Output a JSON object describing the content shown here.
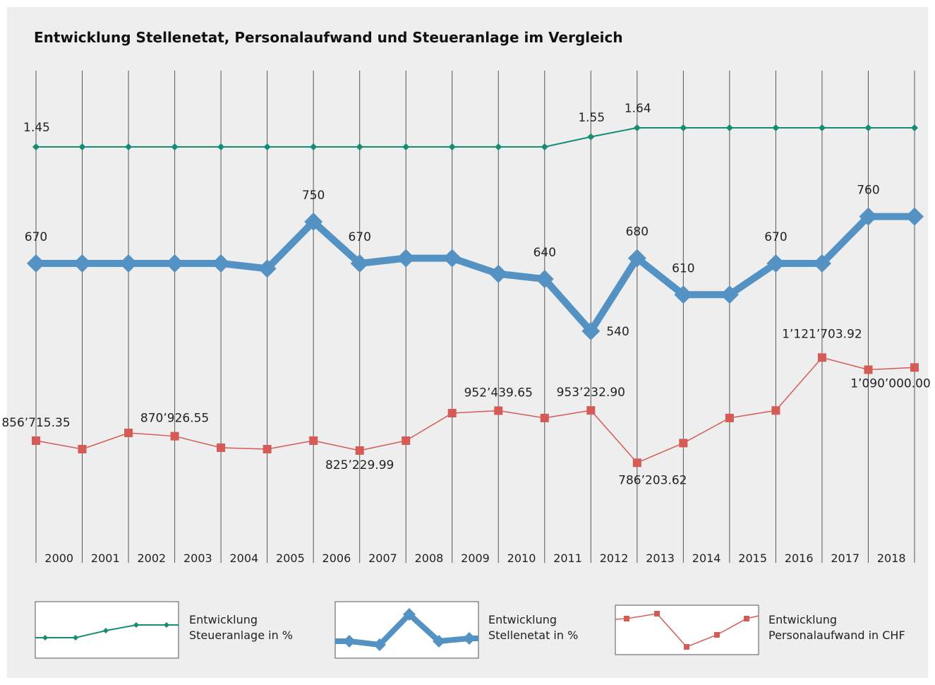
{
  "chart_data": {
    "type": "line",
    "title": "Entwicklung Stellenetat, Personalaufwand und Steueranlage im Vergleich",
    "categories": [
      "2000",
      "2001",
      "2002",
      "2003",
      "2004",
      "2005",
      "2006",
      "2007",
      "2008",
      "2009",
      "2010",
      "2011",
      "2012",
      "2013",
      "2014",
      "2015",
      "2016",
      "2017",
      "2018",
      null
    ],
    "grid": true,
    "series": [
      {
        "name": "Entwicklung Steueranlage in %",
        "color": "#168c74",
        "values": [
          1.45,
          1.45,
          1.45,
          1.45,
          1.45,
          1.45,
          1.45,
          1.45,
          1.45,
          1.45,
          1.45,
          1.45,
          1.55,
          1.64,
          1.64,
          1.64,
          1.64,
          1.64,
          1.64,
          1.64
        ],
        "value_labels": [
          "1.45",
          null,
          null,
          null,
          null,
          null,
          null,
          null,
          null,
          null,
          null,
          null,
          "1.55",
          "1.64",
          null,
          null,
          null,
          null,
          null,
          null
        ]
      },
      {
        "name": "Entwicklung Stellenetat in %",
        "color": "#5592c4",
        "values": [
          670,
          670,
          670,
          670,
          670,
          660,
          750,
          670,
          680,
          680,
          650,
          640,
          540,
          680,
          610,
          610,
          670,
          670,
          760,
          760
        ],
        "value_labels": [
          "670",
          null,
          null,
          null,
          null,
          null,
          "750",
          "670",
          null,
          null,
          null,
          "640",
          "540",
          "680",
          "610",
          null,
          "670",
          null,
          "760",
          null
        ]
      },
      {
        "name": "Entwicklung Personalaufwand in CHF",
        "color": "#d55b57",
        "values": [
          856715.35,
          829700,
          881500,
          870926.55,
          834200,
          829700,
          856700,
          825229.99,
          856700,
          944500,
          952439.65,
          929000,
          953232.9,
          786203.62,
          849000,
          929000,
          953000,
          1121703.92,
          1083000,
          1090000
        ],
        "value_labels": [
          "856’715.35",
          null,
          null,
          "870’926.55",
          null,
          null,
          null,
          "825’229.99",
          null,
          null,
          "952’439.65",
          null,
          "953’232.90",
          "786’203.62",
          null,
          null,
          null,
          "1’121’703.92",
          null,
          "1’090’000.00"
        ]
      }
    ]
  }
}
